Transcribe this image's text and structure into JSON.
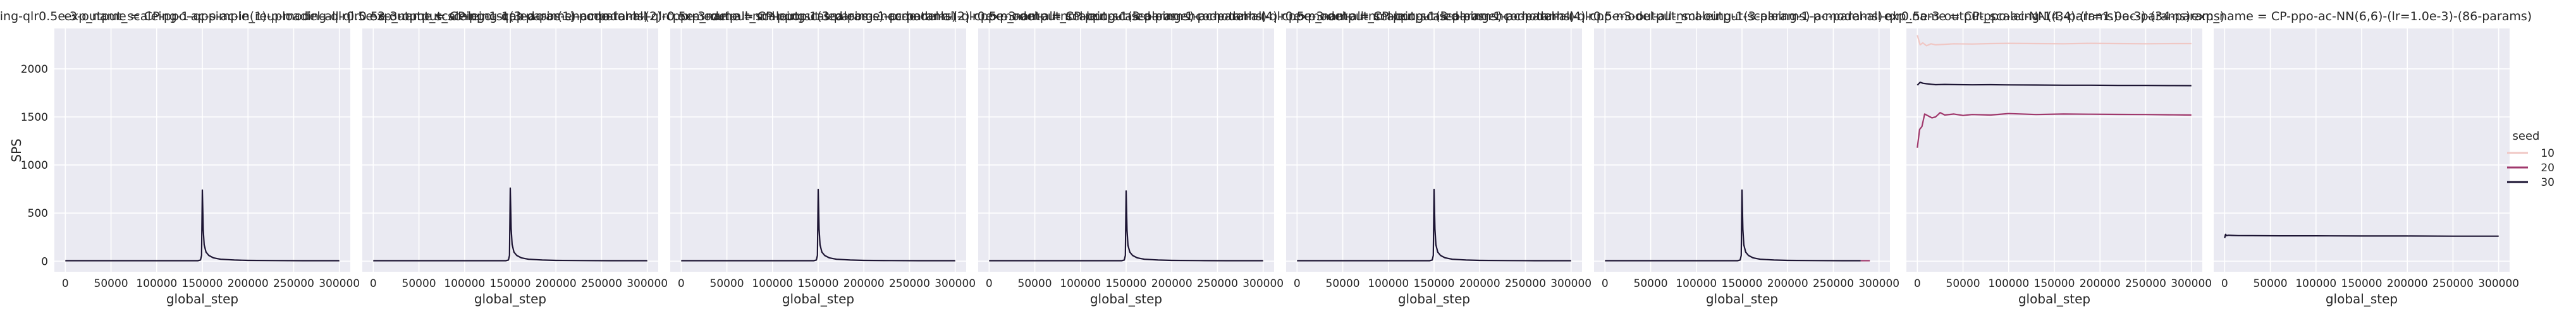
{
  "chart_data": {
    "type": "line",
    "layout": "facet-grid",
    "xlabel": "global_step",
    "ylabel": "SPS",
    "xlim": [
      -12000,
      312000
    ],
    "ylim": [
      -110,
      2420
    ],
    "x_ticks": [
      0,
      50000,
      100000,
      150000,
      200000,
      250000,
      300000
    ],
    "y_ticks": [
      0,
      500,
      1000,
      1500,
      2000
    ],
    "grid": true,
    "legend": {
      "title": "seed",
      "placement": "right",
      "entries": [
        {
          "label": "10",
          "color": "#f0c7c4"
        },
        {
          "label": "20",
          "color": "#a0386c"
        },
        {
          "label": "30",
          "color": "#1c1433"
        }
      ]
    },
    "panels": [
      {
        "title": "exp_name = CP-ppo-ac-simple_reuploading-qlr0.5e-3-output_scaleing-1-qpp-ac-in(1)-p-model-all-qlr0.5e-3-output_scaleing-1(3-params)-ac-params)",
        "series": [
          {
            "name": "30",
            "color": "#1c1433",
            "x": [
              0,
              50000,
              100000,
              145000,
              148000,
              149200,
              150000,
              151000,
              152000,
              154000,
              157000,
              162000,
              170000,
              185000,
              200000,
              230000,
              260000,
              300000
            ],
            "y": [
              5,
              5,
              5,
              5,
              12,
              60,
              740,
              330,
              170,
              95,
              60,
              35,
              20,
              12,
              8,
              6,
              5,
              5
            ]
          }
        ]
      },
      {
        "title": "exp_name = CP-ppo-ac-simple_reuploading-qlr0.5e-3-output_scaleing-1-qpp-ac-in(1)-p-model-all-qlr0.5e-3-output_scaleing-1(3-params)-ac-params)",
        "series": [
          {
            "name": "30",
            "color": "#1c1433",
            "x": [
              0,
              50000,
              100000,
              145000,
              148000,
              149200,
              150000,
              151000,
              152000,
              154000,
              157000,
              162000,
              170000,
              185000,
              200000,
              230000,
              260000,
              300000
            ],
            "y": [
              5,
              5,
              5,
              5,
              12,
              60,
              760,
              340,
              175,
              95,
              60,
              35,
              20,
              12,
              8,
              6,
              5,
              5
            ]
          }
        ]
      },
      {
        "title": "exp_name = CP-ppo-scaled-pos-encode-tanh-(2)-cpp-model-all-nml-output-scaleing-1-p-model-all-qlr0.5e-3-output_scaleing-1(3-params)-ac-params)",
        "series": [
          {
            "name": "30",
            "color": "#1c1433",
            "x": [
              0,
              50000,
              100000,
              145000,
              148000,
              149200,
              150000,
              151000,
              152000,
              154000,
              157000,
              162000,
              170000,
              185000,
              200000,
              230000,
              260000,
              300000
            ],
            "y": [
              5,
              5,
              5,
              5,
              12,
              60,
              745,
              335,
              170,
              95,
              60,
              35,
              20,
              12,
              8,
              6,
              5,
              5
            ]
          }
        ]
      },
      {
        "title": "exp_name = CP-ppo-scaled-pos-encode-tanh-(2)-cpp-model-all-nml-output-scaleing-1-p-model-all-qlr0.5e-3-output_scaleing-1(3-params)-ac-params)",
        "series": [
          {
            "name": "30",
            "color": "#1c1433",
            "x": [
              0,
              50000,
              100000,
              145000,
              148000,
              149200,
              150000,
              151000,
              152000,
              154000,
              157000,
              162000,
              170000,
              185000,
              200000,
              230000,
              260000,
              300000
            ],
            "y": [
              5,
              5,
              5,
              5,
              12,
              60,
              730,
              325,
              165,
              95,
              60,
              35,
              20,
              12,
              8,
              6,
              5,
              5
            ]
          }
        ]
      },
      {
        "title": "exp_name = CP-ppo-scaled-pos-encode-tanh-(4)-cpp-model-all-nml-output-scaleing-1-p-model-all-qlr0.5e-3-output_scaleing-1(3-params)-ac-params)",
        "series": [
          {
            "name": "30",
            "color": "#1c1433",
            "x": [
              0,
              50000,
              100000,
              145000,
              148000,
              149200,
              150000,
              151000,
              152000,
              154000,
              157000,
              162000,
              170000,
              185000,
              200000,
              230000,
              260000,
              300000
            ],
            "y": [
              5,
              5,
              5,
              5,
              12,
              60,
              745,
              335,
              170,
              95,
              60,
              35,
              20,
              12,
              8,
              6,
              5,
              5
            ]
          }
        ]
      },
      {
        "title": "exp_name = CP-ppo-scaled-pos-encode-tanh-(4)-cpp-model-all-nml-output-scaleing-1-p-model-all-qlr0.5e-3-output_scaleing-1(3-params)-ac-params)",
        "series": [
          {
            "name": "30",
            "color": "#1c1433",
            "x": [
              0,
              50000,
              100000,
              145000,
              148000,
              149200,
              150000,
              151000,
              152000,
              154000,
              157000,
              162000,
              170000,
              185000,
              200000,
              230000,
              260000,
              280000
            ],
            "y": [
              5,
              5,
              5,
              5,
              12,
              60,
              740,
              330,
              170,
              95,
              60,
              35,
              20,
              12,
              8,
              6,
              5,
              5
            ]
          },
          {
            "name": "20",
            "color": "#a0386c",
            "x": [
              280000,
              285000,
              290000
            ],
            "y": [
              5,
              5,
              5
            ]
          }
        ]
      },
      {
        "title": "exp_name = CP-ppo-ac-NN(4,4)-(lr=1.0e-3)-(34-params)",
        "series": [
          {
            "name": "10",
            "color": "#f0c7c4",
            "x": [
              0,
              3000,
              6000,
              10000,
              15000,
              20000,
              30000,
              40000,
              60000,
              80000,
              100000,
              130000,
              160000,
              190000,
              220000,
              250000,
              280000,
              300000
            ],
            "y": [
              2350,
              2250,
              2270,
              2240,
              2260,
              2250,
              2255,
              2260,
              2258,
              2262,
              2265,
              2262,
              2260,
              2265,
              2262,
              2260,
              2262,
              2262
            ]
          },
          {
            "name": "20",
            "color": "#a0386c",
            "x": [
              0,
              2500,
              5000,
              8000,
              12000,
              16000,
              20000,
              25000,
              30000,
              40000,
              50000,
              60000,
              80000,
              100000,
              130000,
              160000,
              190000,
              220000,
              250000,
              280000,
              300000
            ],
            "y": [
              1180,
              1370,
              1400,
              1530,
              1510,
              1490,
              1500,
              1545,
              1520,
              1530,
              1515,
              1525,
              1520,
              1535,
              1525,
              1530,
              1528,
              1526,
              1525,
              1522,
              1520
            ]
          },
          {
            "name": "30",
            "color": "#1c1433",
            "x": [
              0,
              3000,
              6000,
              10000,
              15000,
              20000,
              30000,
              40000,
              60000,
              80000,
              100000,
              130000,
              160000,
              190000,
              220000,
              250000,
              280000,
              300000
            ],
            "y": [
              1830,
              1860,
              1850,
              1845,
              1840,
              1835,
              1838,
              1836,
              1834,
              1835,
              1833,
              1832,
              1830,
              1830,
              1828,
              1828,
              1826,
              1825
            ]
          }
        ]
      },
      {
        "title": "exp_name = CP-ppo-ac-NN(6,6)-(lr=1.0e-3)-(86-params)",
        "series": [
          {
            "name": "30",
            "color": "#1c1433",
            "x": [
              0,
              1000,
              2000,
              4000,
              8000,
              15000,
              30000,
              60000,
              100000,
              150000,
              200000,
              250000,
              300000
            ],
            "y": [
              240,
              280,
              265,
              270,
              268,
              266,
              265,
              264,
              264,
              262,
              262,
              260,
              260
            ]
          }
        ]
      }
    ]
  }
}
